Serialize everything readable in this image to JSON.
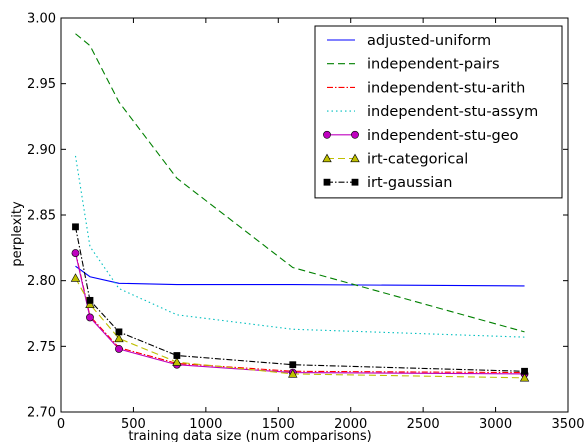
{
  "chart_data": {
    "type": "line",
    "title": "",
    "xlabel": "training data size (num comparisons)",
    "ylabel": "perplexity",
    "xlim": [
      0,
      3500
    ],
    "ylim": [
      2.7,
      3.0
    ],
    "xticks": [
      0,
      500,
      1000,
      1500,
      2000,
      2500,
      3000,
      3500
    ],
    "yticks": [
      2.7,
      2.75,
      2.8,
      2.85,
      2.9,
      2.95,
      3.0
    ],
    "xtick_labels": [
      "0",
      "500",
      "1000",
      "1500",
      "2000",
      "2500",
      "3000",
      "3500"
    ],
    "ytick_labels": [
      "2.70",
      "2.75",
      "2.80",
      "2.85",
      "2.90",
      "2.95",
      "3.00"
    ],
    "grid": false,
    "legend_position": "top-right",
    "series": [
      {
        "name": "adjusted-uniform",
        "color": "#0000ff",
        "dash": "",
        "marker": "none",
        "x": [
          100,
          200,
          400,
          800,
          1600,
          3200
        ],
        "y": [
          2.811,
          2.803,
          2.798,
          2.797,
          2.797,
          2.796
        ]
      },
      {
        "name": "independent-pairs",
        "color": "#008000",
        "dash": "7,4",
        "marker": "none",
        "x": [
          100,
          200,
          400,
          800,
          1600,
          3200
        ],
        "y": [
          2.988,
          2.979,
          2.936,
          2.878,
          2.81,
          2.761
        ]
      },
      {
        "name": "independent-stu-arith",
        "color": "#ff0000",
        "dash": "6,2,1.5,2",
        "marker": "none",
        "x": [
          100,
          200,
          400,
          800,
          1600,
          3200
        ],
        "y": [
          2.822,
          2.773,
          2.749,
          2.737,
          2.731,
          2.73
        ]
      },
      {
        "name": "independent-stu-assym",
        "color": "#00bfbf",
        "dash": "1.5,3",
        "marker": "none",
        "x": [
          100,
          200,
          400,
          800,
          1600,
          3200
        ],
        "y": [
          2.895,
          2.826,
          2.794,
          2.774,
          2.763,
          2.757
        ]
      },
      {
        "name": "independent-stu-geo",
        "color": "#bf00bf",
        "dash": "",
        "marker": "circle",
        "x": [
          100,
          200,
          400,
          800,
          1600,
          3200
        ],
        "y": [
          2.821,
          2.772,
          2.748,
          2.736,
          2.73,
          2.729
        ]
      },
      {
        "name": "irt-categorical",
        "color": "#bfbf00",
        "dash": "7,4",
        "marker": "triangle",
        "x": [
          100,
          200,
          400,
          800,
          1600,
          3200
        ],
        "y": [
          2.802,
          2.782,
          2.756,
          2.738,
          2.729,
          2.726
        ]
      },
      {
        "name": "irt-gaussian",
        "color": "#000000",
        "dash": "6,2,1.5,2",
        "marker": "square",
        "x": [
          100,
          200,
          400,
          800,
          1600,
          3200
        ],
        "y": [
          2.841,
          2.785,
          2.761,
          2.743,
          2.736,
          2.731
        ]
      }
    ]
  }
}
